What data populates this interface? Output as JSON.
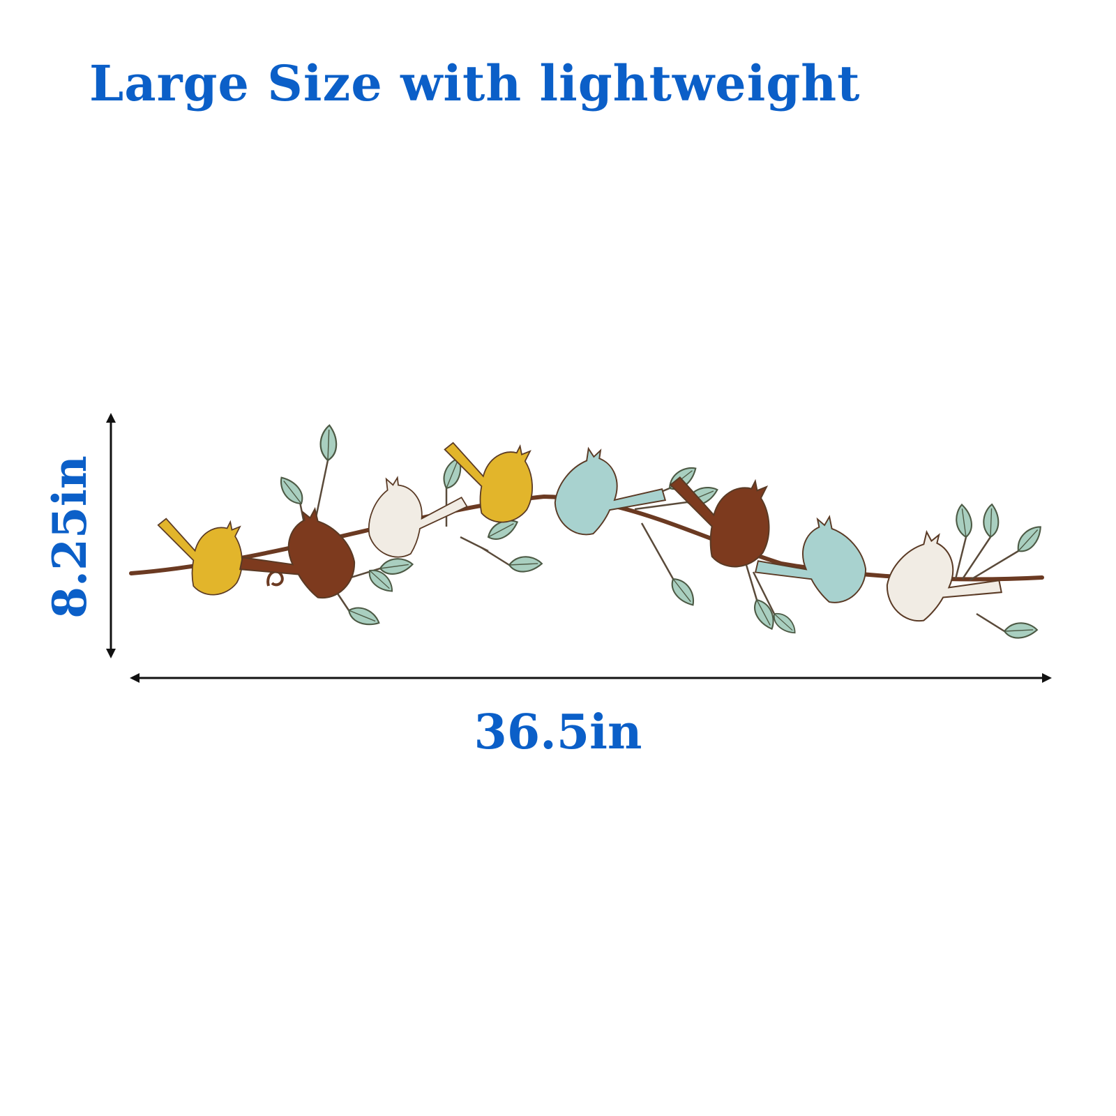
{
  "headline": "Large Size with lightweight",
  "dimensions": {
    "height_label": "8.25in",
    "width_label": "36.5in"
  },
  "product": {
    "bird_colors": [
      "#e2b52b",
      "#7d3a1e",
      "#f1ece4",
      "#e2b52b",
      "#a8d2cf",
      "#7d3a1e",
      "#a8d2cf",
      "#f1ece4"
    ],
    "leaf_color": "#a9cfc0",
    "branch_color": "#6b3a22"
  },
  "colors": {
    "text_accent": "#0b5fc8",
    "arrow": "#111111"
  }
}
